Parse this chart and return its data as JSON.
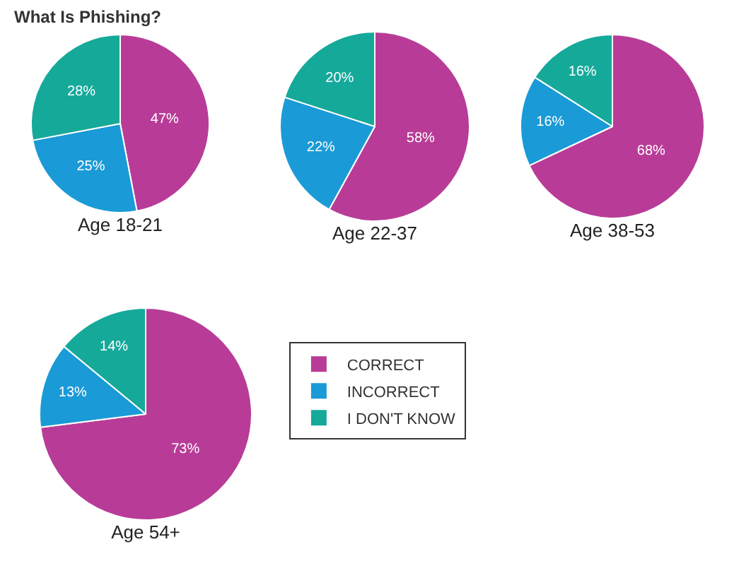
{
  "chart_data": {
    "type": "pie",
    "title": "What Is Phishing?",
    "categories": [
      "CORRECT",
      "INCORRECT",
      "I DON'T KNOW"
    ],
    "colors": [
      "#b83c97",
      "#1a9ad6",
      "#15a99a"
    ],
    "legend": "bottom",
    "series": [
      {
        "name": "Age 18-21",
        "values": [
          47,
          25,
          28
        ],
        "value_labels": [
          "47%",
          "25%",
          "28%"
        ]
      },
      {
        "name": "Age 22-37",
        "values": [
          58,
          22,
          20
        ],
        "value_labels": [
          "58%",
          "22%",
          "20%"
        ]
      },
      {
        "name": "Age 38-53",
        "values": [
          68,
          16,
          16
        ],
        "value_labels": [
          "68%",
          "16%",
          "16%"
        ]
      },
      {
        "name": "Age 54+",
        "values": [
          73,
          13,
          14
        ],
        "value_labels": [
          "73%",
          "13%",
          "14%"
        ]
      }
    ]
  }
}
